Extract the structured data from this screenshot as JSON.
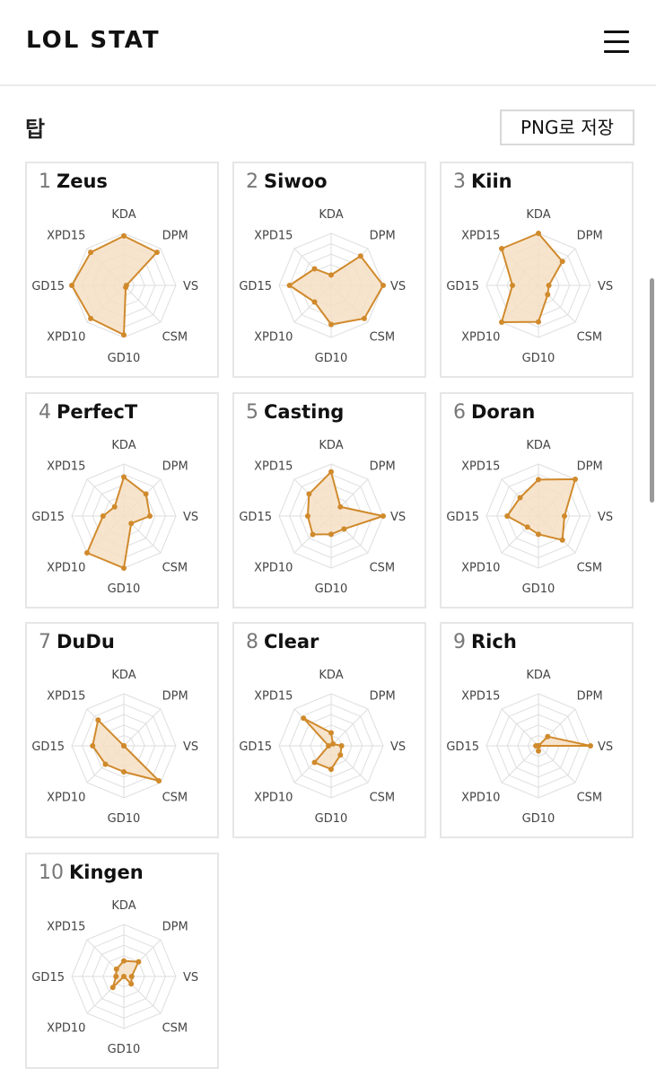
{
  "header": {
    "logo": "LOL STAT",
    "menu_icon": "hamburger-menu-icon"
  },
  "section": {
    "title": "탑",
    "save_button": "PNG로 저장"
  },
  "axes": [
    "KDA",
    "DPM",
    "VS",
    "CSM",
    "GD10",
    "XPD10",
    "GD15",
    "XPD15"
  ],
  "colors": {
    "stroke": "#d08a2c",
    "fill": "#f6dfc4",
    "grid": "#dedede"
  },
  "players": [
    {
      "rank": "1",
      "name": "Zeus",
      "values": [
        0.95,
        0.9,
        0.05,
        0.05,
        0.95,
        0.9,
        1.0,
        0.9
      ]
    },
    {
      "rank": "2",
      "name": "Siwoo",
      "values": [
        0.2,
        0.8,
        1.0,
        0.9,
        0.75,
        0.45,
        0.8,
        0.45
      ]
    },
    {
      "rank": "3",
      "name": "Kiin",
      "values": [
        1.0,
        0.65,
        0.2,
        0.25,
        0.7,
        1.0,
        0.5,
        1.0
      ]
    },
    {
      "rank": "4",
      "name": "PerfecT",
      "values": [
        0.75,
        0.6,
        0.5,
        0.2,
        1.0,
        1.0,
        0.4,
        0.25
      ]
    },
    {
      "rank": "5",
      "name": "Casting",
      "values": [
        0.85,
        0.25,
        1.0,
        0.35,
        0.35,
        0.5,
        0.45,
        0.6
      ]
    },
    {
      "rank": "6",
      "name": "Doran",
      "values": [
        0.7,
        1.0,
        0.5,
        0.65,
        0.35,
        0.3,
        0.6,
        0.5
      ]
    },
    {
      "rank": "7",
      "name": "DuDu",
      "values": [
        0.0,
        0.0,
        0.0,
        0.95,
        0.5,
        0.5,
        0.6,
        0.7
      ]
    },
    {
      "rank": "8",
      "name": "Clear",
      "values": [
        0.25,
        0.05,
        0.2,
        0.25,
        0.45,
        0.45,
        0.05,
        0.75
      ]
    },
    {
      "rank": "9",
      "name": "Rich",
      "values": [
        0.0,
        0.25,
        1.0,
        0.0,
        0.1,
        0.0,
        0.05,
        0.0
      ]
    },
    {
      "rank": "10",
      "name": "Kingen",
      "values": [
        0.3,
        0.4,
        0.15,
        0.2,
        0.0,
        0.3,
        0.15,
        0.2
      ]
    }
  ]
}
